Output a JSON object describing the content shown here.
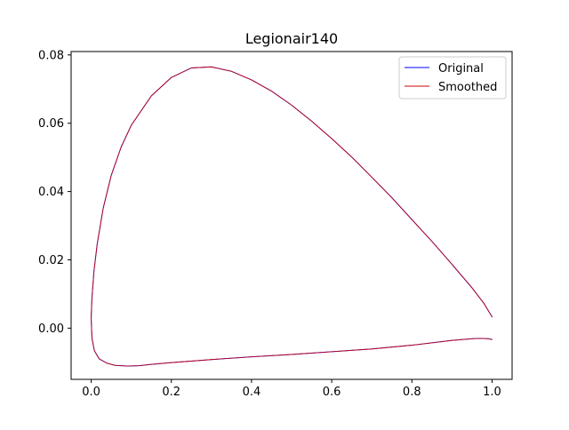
{
  "chart_data": {
    "type": "line",
    "title": "Legionair140",
    "xlabel": "",
    "ylabel": "",
    "xlim": [
      -0.05,
      1.05
    ],
    "ylim": [
      -0.015,
      0.081
    ],
    "x_ticks": [
      0.0,
      0.2,
      0.4,
      0.6,
      0.8,
      1.0
    ],
    "x_tick_labels": [
      "0.0",
      "0.2",
      "0.4",
      "0.6",
      "0.8",
      "1.0"
    ],
    "y_ticks": [
      0.0,
      0.02,
      0.04,
      0.06,
      0.08
    ],
    "y_tick_labels": [
      "0.00",
      "0.02",
      "0.04",
      "0.06",
      "0.08"
    ],
    "grid": false,
    "legend_position": "top-right",
    "series": [
      {
        "name": "Original",
        "color": "#0000ff",
        "x": [
          1.0,
          0.98,
          0.95,
          0.9,
          0.85,
          0.8,
          0.75,
          0.7,
          0.65,
          0.6,
          0.55,
          0.5,
          0.45,
          0.4,
          0.35,
          0.3,
          0.25,
          0.2,
          0.15,
          0.1,
          0.075,
          0.05,
          0.03,
          0.015,
          0.007,
          0.002,
          0.0,
          0.002,
          0.008,
          0.02,
          0.04,
          0.06,
          0.09,
          0.12,
          0.15,
          0.2,
          0.3,
          0.4,
          0.5,
          0.6,
          0.7,
          0.8,
          0.85,
          0.9,
          0.95,
          0.97,
          0.99,
          1.0
        ],
        "y": [
          0.0033,
          0.0072,
          0.0118,
          0.0187,
          0.0254,
          0.0318,
          0.0382,
          0.0442,
          0.0501,
          0.0555,
          0.0606,
          0.0653,
          0.0694,
          0.0727,
          0.0752,
          0.0765,
          0.0762,
          0.0734,
          0.068,
          0.0594,
          0.0531,
          0.0447,
          0.0351,
          0.0246,
          0.0167,
          0.009,
          0.003,
          -0.003,
          -0.0066,
          -0.009,
          -0.0103,
          -0.0109,
          -0.0111,
          -0.011,
          -0.0106,
          -0.0101,
          -0.0092,
          -0.0084,
          -0.0077,
          -0.0069,
          -0.0061,
          -0.005,
          -0.0043,
          -0.0036,
          -0.0031,
          -0.003,
          -0.0031,
          -0.0033
        ]
      },
      {
        "name": "Smoothed",
        "color": "#cc0000",
        "x": [
          1.0,
          0.98,
          0.95,
          0.9,
          0.85,
          0.8,
          0.75,
          0.7,
          0.65,
          0.6,
          0.55,
          0.5,
          0.45,
          0.4,
          0.35,
          0.3,
          0.25,
          0.2,
          0.15,
          0.1,
          0.075,
          0.05,
          0.03,
          0.015,
          0.007,
          0.002,
          0.0,
          0.002,
          0.008,
          0.02,
          0.04,
          0.06,
          0.09,
          0.12,
          0.15,
          0.2,
          0.3,
          0.4,
          0.5,
          0.6,
          0.7,
          0.8,
          0.85,
          0.9,
          0.95,
          0.97,
          0.99,
          1.0
        ],
        "y": [
          0.0033,
          0.0072,
          0.0118,
          0.0187,
          0.0254,
          0.0318,
          0.0382,
          0.0442,
          0.0501,
          0.0555,
          0.0606,
          0.0653,
          0.0694,
          0.0727,
          0.0752,
          0.0765,
          0.0762,
          0.0734,
          0.068,
          0.0594,
          0.0531,
          0.0447,
          0.0351,
          0.0246,
          0.0167,
          0.009,
          0.003,
          -0.003,
          -0.0066,
          -0.009,
          -0.0103,
          -0.0109,
          -0.0111,
          -0.011,
          -0.0106,
          -0.0101,
          -0.0092,
          -0.0084,
          -0.0077,
          -0.0069,
          -0.0061,
          -0.005,
          -0.0043,
          -0.0036,
          -0.0031,
          -0.003,
          -0.0031,
          -0.0033
        ]
      }
    ]
  }
}
